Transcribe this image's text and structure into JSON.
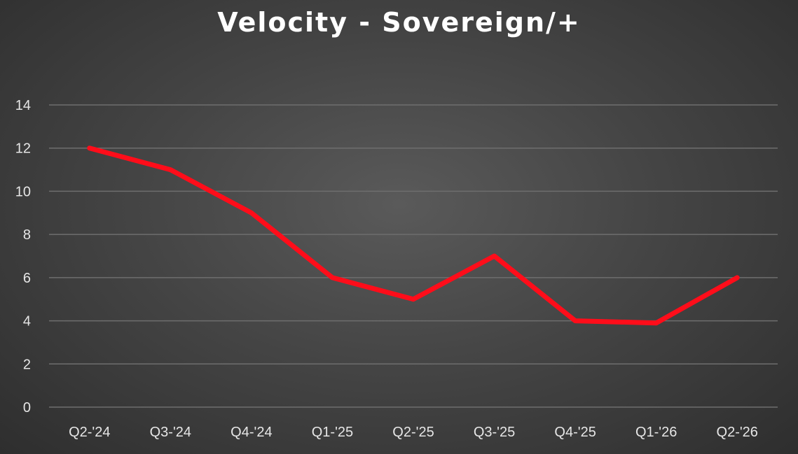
{
  "chart_data": {
    "type": "line",
    "title": "Velocity - Sovereign/+",
    "xlabel": "",
    "ylabel": "",
    "categories": [
      "Q2-'24",
      "Q3-'24",
      "Q4-'24",
      "Q1-'25",
      "Q2-'25",
      "Q3-'25",
      "Q4-'25",
      "Q1-'26",
      "Q2-'26"
    ],
    "series": [
      {
        "values": [
          12,
          11,
          9,
          6,
          5,
          7,
          4,
          3.9,
          6
        ]
      }
    ],
    "ylim": [
      0,
      14
    ],
    "yticks": [
      "0",
      "2",
      "4",
      "6",
      "8",
      "10",
      "12",
      "14"
    ],
    "grid": true,
    "legend": "none",
    "colors": {
      "line": "#ff0d1a",
      "grid": "#6e6e6e",
      "text": "#e6e6e6",
      "title": "#ffffff"
    }
  }
}
